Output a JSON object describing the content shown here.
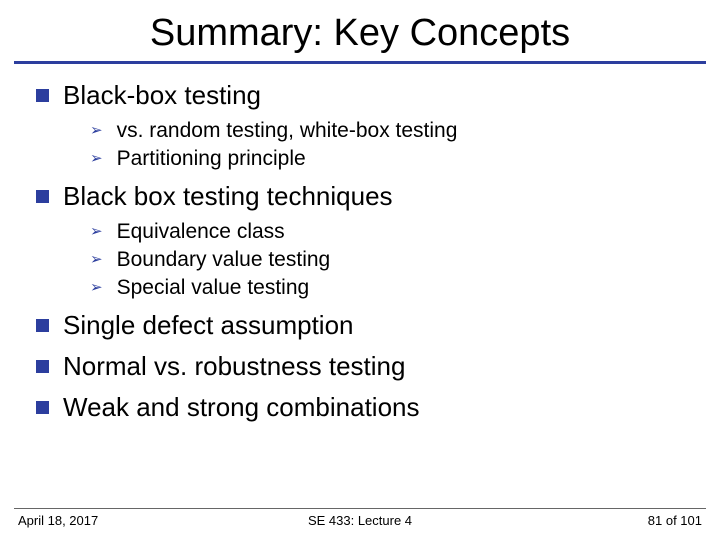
{
  "title": "Summary: Key Concepts",
  "colors": {
    "accent": "#2c3e9e",
    "text": "#000000",
    "background": "#ffffff",
    "footer_rule": "#666666"
  },
  "typography": {
    "title_fontsize": 38,
    "top_fontsize": 26,
    "sub_fontsize": 21,
    "footer_fontsize": 13,
    "font_family": "Arial"
  },
  "bullets": [
    {
      "text": "Black-box testing",
      "subs": [
        "vs. random testing, white-box testing",
        "Partitioning principle"
      ]
    },
    {
      "text": "Black box testing techniques",
      "subs": [
        "Equivalence class",
        "Boundary value testing",
        "Special value testing"
      ]
    },
    {
      "text": "Single defect assumption",
      "subs": []
    },
    {
      "text": "Normal vs. robustness testing",
      "subs": []
    },
    {
      "text": "Weak and strong combinations",
      "subs": []
    }
  ],
  "footer": {
    "left": "April 18, 2017",
    "center": "SE 433: Lecture 4",
    "right": "81 of 101"
  }
}
